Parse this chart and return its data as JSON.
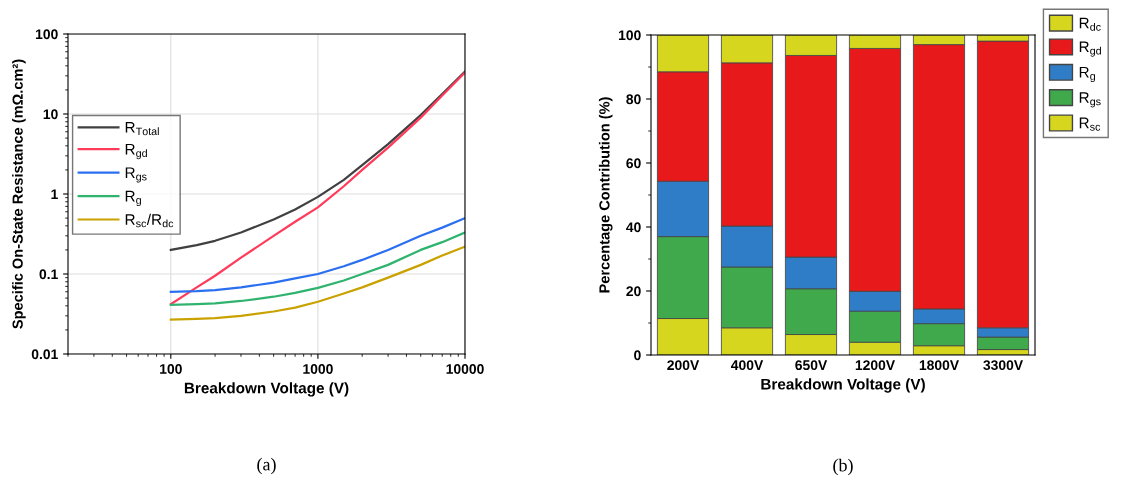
{
  "chart_data": [
    {
      "type": "line",
      "xlabel": "Breakdown Voltage (V)",
      "ylabel": "Specific On-State Resistance (mΩ.cm²)",
      "log": "xy",
      "xlim": [
        20,
        10000
      ],
      "xticks": [
        100,
        1000,
        10000
      ],
      "ylim": [
        0.01,
        100
      ],
      "yticks": [
        0.01,
        0.1,
        1,
        10,
        100
      ],
      "grid": true,
      "legend": "left",
      "annotations": [
        "(a)"
      ],
      "x": [
        100,
        150,
        200,
        300,
        500,
        700,
        1000,
        1500,
        2000,
        3000,
        5000,
        7000,
        10000
      ],
      "series": [
        {
          "name": "R$_{Total}$",
          "color": "#404040",
          "values": [
            0.2,
            0.23,
            0.26,
            0.33,
            0.48,
            0.64,
            0.92,
            1.5,
            2.3,
            4.2,
            9.7,
            17.8,
            34
          ]
        },
        {
          "name": "R$_{gd}$",
          "color": "#ff3b5c",
          "values": [
            0.042,
            0.068,
            0.095,
            0.16,
            0.3,
            0.45,
            0.68,
            1.25,
            2.0,
            3.8,
            9,
            17,
            33
          ]
        },
        {
          "name": "R$_{gs}$",
          "color": "#2a6ff0",
          "values": [
            0.06,
            0.061,
            0.063,
            0.068,
            0.078,
            0.088,
            0.1,
            0.125,
            0.15,
            0.2,
            0.3,
            0.38,
            0.5
          ]
        },
        {
          "name": "R$_{g}$",
          "color": "#2fb36e",
          "values": [
            0.041,
            0.042,
            0.043,
            0.046,
            0.052,
            0.058,
            0.067,
            0.083,
            0.1,
            0.13,
            0.2,
            0.25,
            0.33
          ]
        },
        {
          "name": "R$_{sc}$/R$_{dc}$",
          "color": "#c9a200",
          "values": [
            0.027,
            0.0275,
            0.028,
            0.03,
            0.034,
            0.038,
            0.045,
            0.057,
            0.068,
            0.09,
            0.13,
            0.17,
            0.22
          ]
        }
      ]
    },
    {
      "type": "bar",
      "stacked": true,
      "xlabel": "Breakdown Voltage (V)",
      "ylabel": "Percentage Contribution (%)",
      "ylim": [
        0,
        100
      ],
      "yticks": [
        0,
        20,
        40,
        60,
        80,
        100
      ],
      "legend": "top right",
      "annotations": [
        "(b)"
      ],
      "categories": [
        "200V",
        "400V",
        "650V",
        "1200V",
        "1800V",
        "3300V"
      ],
      "series": [
        {
          "name": "R$_{sc}$",
          "color": "#d6d61e",
          "values": [
            11.4,
            8.5,
            6.4,
            4.0,
            2.9,
            1.7
          ]
        },
        {
          "name": "R$_{gs}$",
          "color": "#3fa94c",
          "values": [
            25.6,
            19.0,
            14.3,
            9.7,
            6.9,
            3.9
          ]
        },
        {
          "name": "R$_{g}$",
          "color": "#2f7dc6",
          "values": [
            17.3,
            12.8,
            9.9,
            6.2,
            4.6,
            2.9
          ]
        },
        {
          "name": "R$_{gd}$",
          "color": "#e8191b",
          "values": [
            34.2,
            51.0,
            63.0,
            75.9,
            82.6,
            89.6
          ]
        },
        {
          "name": "R$_{dc}$",
          "color": "#d6d61e",
          "values": [
            11.5,
            8.7,
            6.4,
            4.2,
            3.0,
            1.9
          ]
        }
      ]
    }
  ]
}
